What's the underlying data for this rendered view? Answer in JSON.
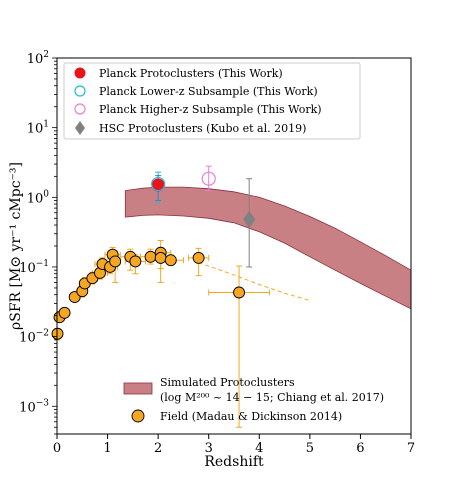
{
  "chart_data": {
    "type": "scatter",
    "xlabel": "Redshift",
    "ylabel": "ρSFR [M⊙ yr⁻¹ cMpc⁻³]",
    "xlim": [
      0,
      7
    ],
    "ylim": [
      0.0004,
      100
    ],
    "yscale": "log",
    "grid": false,
    "x_ticks": [
      0,
      1,
      2,
      3,
      4,
      5,
      6,
      7
    ],
    "y_ticks": [
      {
        "value": 0.001,
        "base": "10",
        "exp": "−3"
      },
      {
        "value": 0.01,
        "base": "10",
        "exp": "−2"
      },
      {
        "value": 0.1,
        "base": "10",
        "exp": "−1"
      },
      {
        "value": 1,
        "base": "10",
        "exp": "0"
      },
      {
        "value": 10,
        "base": "10",
        "exp": "1"
      },
      {
        "value": 100,
        "base": "10",
        "exp": "2"
      }
    ],
    "legend_top": {
      "placement": "upper-left",
      "entries": [
        {
          "label": "Planck Protoclusters (This Work)",
          "marker": "filled-circle",
          "color": "#e8141c"
        },
        {
          "label": "Planck Lower-z Subsample (This Work)",
          "marker": "open-circle",
          "color": "#2ab7d6"
        },
        {
          "label": "Planck Higher-z Subsample (This Work)",
          "marker": "open-circle",
          "color": "#e87fd0"
        },
        {
          "label": "HSC Protoclusters (Kubo et al. 2019)",
          "marker": "diamond",
          "color": "#808080"
        }
      ]
    },
    "legend_bottom": {
      "placement": "lower-center",
      "entries": [
        {
          "label": "Simulated Protoclusters",
          "label_line2": "(log M²⁰⁰ ~ 14 − 15; Chiang et al. 2017)",
          "marker": "band",
          "color": "#b5555c"
        },
        {
          "label": "Field (Madau & Dickinson 2014)",
          "marker": "filled-circle",
          "color": "#f5a623"
        }
      ]
    },
    "series": [
      {
        "name": "Planck Protoclusters (This Work)",
        "color": "#e8141c",
        "points": [
          {
            "x": 2.0,
            "y": 1.5,
            "yerr_low": 0.6,
            "yerr_high": 0.55
          }
        ]
      },
      {
        "name": "Planck Lower-z Subsample (This Work)",
        "color": "#2ab7d6",
        "points": [
          {
            "x": 2.0,
            "y": 1.55,
            "yerr_low": 0.7,
            "yerr_high": 0.75
          }
        ]
      },
      {
        "name": "Planck Higher-z Subsample (This Work)",
        "color": "#e87fd0",
        "points": [
          {
            "x": 3.0,
            "y": 1.85,
            "yerr_low": 0.6,
            "yerr_high": 0.95
          }
        ]
      },
      {
        "name": "HSC Protoclusters (Kubo et al. 2019)",
        "color": "#808080",
        "points": [
          {
            "x": 3.8,
            "y": 0.48,
            "yerr_low": 0.38,
            "yerr_high": 1.37
          }
        ]
      },
      {
        "name": "Simulated Protoclusters",
        "color": "#b5555c",
        "band": {
          "x": [
            1.35,
            1.7,
            2.0,
            2.5,
            3.0,
            3.5,
            4.0,
            4.5,
            5.0,
            5.5,
            6.0,
            6.5,
            7.0
          ],
          "y_low": [
            0.52,
            0.55,
            0.56,
            0.54,
            0.5,
            0.43,
            0.32,
            0.22,
            0.14,
            0.09,
            0.058,
            0.038,
            0.025
          ],
          "y_high": [
            1.25,
            1.35,
            1.4,
            1.4,
            1.33,
            1.2,
            1.0,
            0.75,
            0.53,
            0.36,
            0.23,
            0.145,
            0.09
          ]
        }
      },
      {
        "name": "Field (Madau & Dickinson 2014)",
        "color": "#f5a623",
        "points": [
          {
            "x": 0.01,
            "y": 0.011,
            "yerr_low": 0.002,
            "yerr_high": 0.002,
            "xerr": 0.01
          },
          {
            "x": 0.05,
            "y": 0.019,
            "yerr_low": 0.003,
            "yerr_high": 0.004,
            "xerr": 0.04
          },
          {
            "x": 0.15,
            "y": 0.022,
            "yerr_low": 0.003,
            "yerr_high": 0.003,
            "xerr": 0.05
          },
          {
            "x": 0.35,
            "y": 0.037,
            "yerr_low": 0.005,
            "yerr_high": 0.006,
            "xerr": 0.1
          },
          {
            "x": 0.5,
            "y": 0.045,
            "yerr_low": 0.008,
            "yerr_high": 0.01,
            "xerr": 0.1
          },
          {
            "x": 0.55,
            "y": 0.058,
            "yerr_low": 0.01,
            "yerr_high": 0.012,
            "xerr": 0.1
          },
          {
            "x": 0.7,
            "y": 0.069,
            "yerr_low": 0.012,
            "yerr_high": 0.015,
            "xerr": 0.1
          },
          {
            "x": 0.85,
            "y": 0.082,
            "yerr_low": 0.015,
            "yerr_high": 0.02,
            "xerr": 0.15
          },
          {
            "x": 0.9,
            "y": 0.11,
            "yerr_low": 0.02,
            "yerr_high": 0.025,
            "xerr": 0.15
          },
          {
            "x": 1.05,
            "y": 0.1,
            "yerr_low": 0.02,
            "yerr_high": 0.03,
            "xerr": 0.15
          },
          {
            "x": 1.1,
            "y": 0.15,
            "yerr_low": 0.03,
            "yerr_high": 0.04,
            "xerr": 0.15
          },
          {
            "x": 1.15,
            "y": 0.12,
            "yerr_low": 0.06,
            "yerr_high": 0.05,
            "xerr": 0.1
          },
          {
            "x": 1.45,
            "y": 0.14,
            "yerr_low": 0.05,
            "yerr_high": 0.04,
            "xerr": 0.2
          },
          {
            "x": 1.55,
            "y": 0.12,
            "yerr_low": 0.04,
            "yerr_high": 0.03,
            "xerr": 0.2
          },
          {
            "x": 1.85,
            "y": 0.14,
            "yerr_low": 0.03,
            "yerr_high": 0.04,
            "xerr": 0.2
          },
          {
            "x": 2.05,
            "y": 0.16,
            "yerr_low": 0.1,
            "yerr_high": 0.08,
            "xerr": 0.2
          },
          {
            "x": 2.05,
            "y": 0.135,
            "yerr_low": 0.04,
            "yerr_high": 0.03,
            "xerr": 0.1
          },
          {
            "x": 2.25,
            "y": 0.125,
            "yerr_low": 0.02,
            "yerr_high": 0.02,
            "xerr": 0.25
          },
          {
            "x": 2.8,
            "y": 0.135,
            "yerr_low": 0.06,
            "yerr_high": 0.05,
            "xerr": 0.2
          },
          {
            "x": 3.6,
            "y": 0.043,
            "yerr_low": 0.0425,
            "yerr_high": 0.06,
            "xerr_low": 0.6,
            "xerr_high": 0.6
          }
        ],
        "fit": {
          "x": [
            2.8,
            3.2,
            3.6,
            4.0,
            4.5,
            5.0
          ],
          "y": [
            0.115,
            0.092,
            0.072,
            0.056,
            0.042,
            0.033
          ]
        }
      }
    ]
  }
}
